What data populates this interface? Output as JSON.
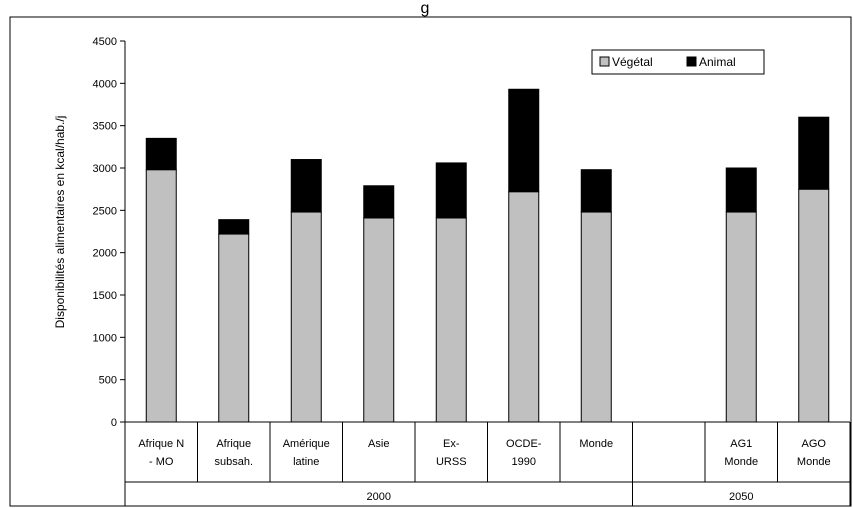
{
  "chart_data": {
    "type": "bar",
    "stacked": true,
    "title_fragment": "g",
    "ylabel": "Disponibilités alimentaires en kcal/hab./j",
    "ylim": [
      0,
      4500
    ],
    "yticks": [
      0,
      500,
      1000,
      1500,
      2000,
      2500,
      3000,
      3500,
      4000,
      4500
    ],
    "categories": [
      [
        "Afrique N",
        "- MO"
      ],
      [
        "Afrique",
        "subsah."
      ],
      [
        "Amérique",
        "latine"
      ],
      [
        "Asie"
      ],
      [
        "Ex-",
        "URSS"
      ],
      [
        "OCDE-",
        "1990"
      ],
      [
        "Monde"
      ],
      [],
      [
        "AG1",
        "Monde"
      ],
      [
        "AGO",
        "Monde"
      ]
    ],
    "groups": [
      {
        "label": "2000",
        "span": [
          0,
          7
        ]
      },
      {
        "label": "2050",
        "span": [
          7,
          10
        ]
      }
    ],
    "series": [
      {
        "name": "Végétal",
        "color": "#c0c0c0",
        "values": [
          2980,
          2220,
          2480,
          2410,
          2410,
          2720,
          2480,
          null,
          2480,
          2750
        ]
      },
      {
        "name": "Animal",
        "color": "#000000",
        "values": [
          370,
          170,
          620,
          380,
          650,
          1210,
          500,
          null,
          520,
          850
        ]
      }
    ],
    "legend_position": "top-right",
    "grid": false
  }
}
